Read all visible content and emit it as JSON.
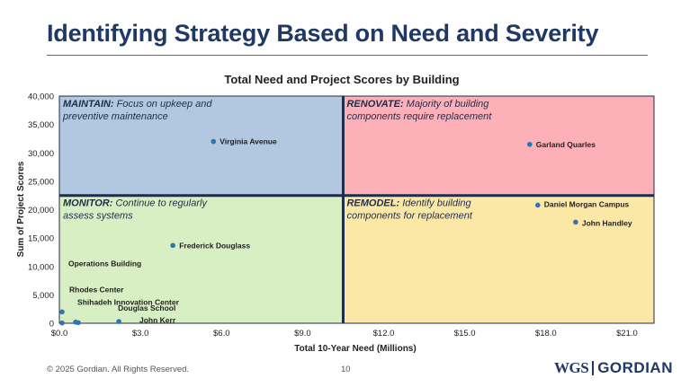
{
  "page": {
    "title": "Identifying Strategy Based on Need and Severity",
    "footer": {
      "copyright": "© 2025 Gordian. All Rights Reserved.",
      "page_number": "10"
    },
    "logo": {
      "left_mark": "WGS",
      "right_mark": "GORDIAN"
    },
    "colors": {
      "title": "#1f3864",
      "rule": "#2e75b6",
      "point": "#2e75b6"
    }
  },
  "chart_data": {
    "type": "scatter",
    "title": "Total Need and Project Scores by Building",
    "xlabel": "Total 10-Year Need (Millions)",
    "ylabel": "Sum of Project Scores",
    "xlim": [
      0,
      22
    ],
    "ylim": [
      0,
      40000
    ],
    "x_ticks": [
      0,
      3,
      6,
      9,
      12,
      15,
      18,
      21
    ],
    "x_tick_labels": [
      "$0.0",
      "$3.0",
      "$6.0",
      "$9.0",
      "$12.0",
      "$15.0",
      "$18.0",
      "$21.0"
    ],
    "y_ticks": [
      0,
      5000,
      10000,
      15000,
      20000,
      25000,
      30000,
      35000,
      40000
    ],
    "y_tick_labels": [
      "0",
      "5,000",
      "10,000",
      "15,000",
      "20,000",
      "25,000",
      "30,000",
      "35,000",
      "40,000"
    ],
    "grid": false,
    "quadrants": [
      {
        "name": "maintain",
        "label": "MAINTAIN:",
        "text": " Focus on upkeep and",
        "text2": "preventive maintenance",
        "color": "#b1c8e0",
        "x_range": [
          0,
          10.5
        ],
        "y_range": [
          22500,
          40000
        ]
      },
      {
        "name": "renovate",
        "label": "RENOVATE:",
        "text": " Majority of building",
        "text2": "components require replacement",
        "color": "#fdb0b8",
        "x_range": [
          10.5,
          22
        ],
        "y_range": [
          22500,
          40000
        ]
      },
      {
        "name": "monitor",
        "label": "MONITOR:",
        "text": " Continue to regularly",
        "text2": "assess systems",
        "color": "#d7efc3",
        "x_range": [
          0,
          10.5
        ],
        "y_range": [
          0,
          22500
        ]
      },
      {
        "name": "remodel",
        "label": "REMODEL:",
        "text": " Identify building",
        "text2": "components for replacement",
        "color": "#fbe8a7",
        "x_range": [
          10.5,
          22
        ],
        "y_range": [
          0,
          22500
        ]
      }
    ],
    "points": [
      {
        "label": "Virginia Avenue",
        "x": 5.7,
        "y": 32000
      },
      {
        "label": "Garland Quarles",
        "x": 17.4,
        "y": 31500
      },
      {
        "label": "Daniel Morgan Campus",
        "x": 17.7,
        "y": 20800
      },
      {
        "label": "John Handley",
        "x": 19.1,
        "y": 17800
      },
      {
        "label": "Frederick Douglass",
        "x": 4.2,
        "y": 13700
      },
      {
        "label": "Operations Building",
        "x": 0.1,
        "y": 2000
      },
      {
        "label": "Rhodes Center",
        "x": 0.6,
        "y": 200
      },
      {
        "label": "Shihadeh Innovation Center",
        "x": 0.7,
        "y": 100
      },
      {
        "label": "Douglas School",
        "x": 2.2,
        "y": 300
      },
      {
        "label": "John Kerr",
        "x": 0.1,
        "y": 50
      }
    ]
  }
}
